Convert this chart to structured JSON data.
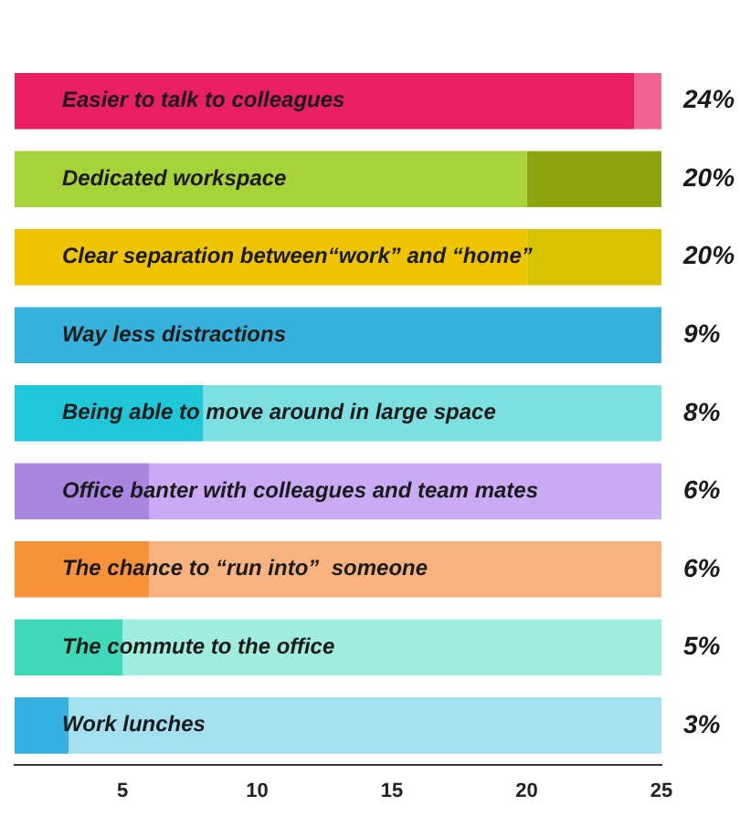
{
  "chart_data": {
    "type": "bar",
    "orientation": "horizontal",
    "categories": [
      "Easier to talk to colleagues",
      "Dedicated workspace",
      "Clear separation between“work” and “home”",
      "Way less distractions",
      "Being able to move around in large space",
      "Office banter with colleagues and team mates",
      "The chance to “run into”  someone",
      "The commute to the office",
      "Work lunches"
    ],
    "stacked": true,
    "series": [
      {
        "values": [
          24,
          20,
          20,
          9,
          8,
          6,
          6,
          5,
          3
        ],
        "colors": [
          "#e91e63",
          "#a8d23a",
          "#f0c400",
          "#36b1dc",
          "#1ec8d8",
          "#a987e0",
          "#f7923a",
          "#40d9b8",
          "#35b0e0"
        ]
      },
      {
        "values": [
          1,
          5,
          5,
          16,
          17,
          19,
          19,
          20,
          22
        ],
        "colors": [
          "#f06292",
          "#8da40e",
          "#d9c200",
          "#36b1dc",
          "#7de0e0",
          "#c9aaf5",
          "#f7b27e",
          "#9eedde",
          "#a5e0f0"
        ]
      }
    ],
    "annotations": [
      "24%",
      "20%",
      "20%",
      "9%",
      "8%",
      "6%",
      "6%",
      "5%",
      "3%"
    ],
    "xlim": [
      1,
      25
    ],
    "xticks": [
      5,
      10,
      15,
      20,
      25
    ],
    "grid": false,
    "legend": false
  }
}
